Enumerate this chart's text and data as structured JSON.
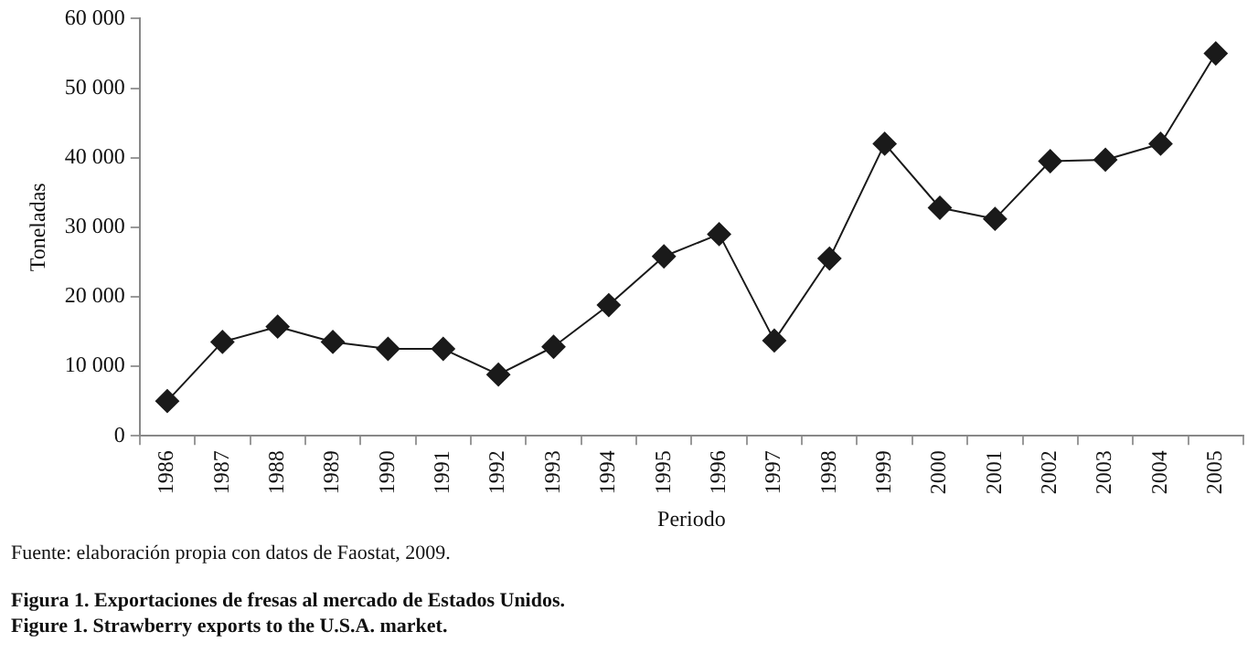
{
  "chart_data": {
    "type": "line",
    "xlabel": "Periodo",
    "ylabel": "Toneladas",
    "categories": [
      "1986",
      "1987",
      "1988",
      "1989",
      "1990",
      "1991",
      "1992",
      "1993",
      "1994",
      "1995",
      "1996",
      "1997",
      "1998",
      "1999",
      "2000",
      "2001",
      "2002",
      "2003",
      "2004",
      "2005"
    ],
    "series": [
      {
        "color": "#1a1a1a",
        "values": [
          5000,
          13500,
          15700,
          13500,
          12500,
          12500,
          8800,
          12800,
          18800,
          25800,
          29000,
          13700,
          25500,
          42000,
          32800,
          31200,
          39500,
          39700,
          42000,
          55000
        ]
      }
    ],
    "ylim": [
      0,
      60000
    ],
    "yticks": [
      {
        "value": 0,
        "label": "0"
      },
      {
        "value": 10000,
        "label": "10 000"
      },
      {
        "value": 20000,
        "label": "20 000"
      },
      {
        "value": 30000,
        "label": "30 000"
      },
      {
        "value": 40000,
        "label": "40 000"
      },
      {
        "value": 50000,
        "label": "50 000"
      },
      {
        "value": 60000,
        "label": "60 000"
      }
    ],
    "marker": "diamond",
    "line_style": "solid",
    "grid": false,
    "legend": false,
    "annotations": [
      "Fuente: elaboración propia con datos de Faostat, 2009.",
      "Figura 1. Exportaciones de fresas al mercado de Estados Unidos.",
      "Figure 1. Strawberry exports to the U.S.A. market."
    ]
  }
}
